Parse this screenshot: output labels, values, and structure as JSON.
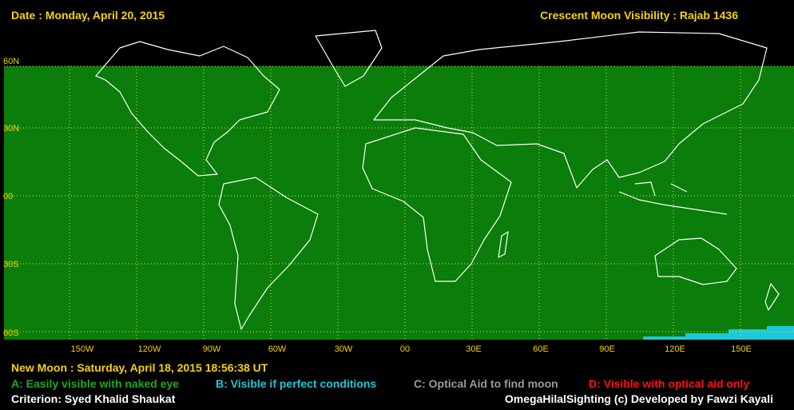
{
  "header": {
    "date": "Date : Monday, April 20, 2015",
    "title": "Crescent Moon Visibility : Rajab  1436"
  },
  "lat_labels": [
    "60N",
    "30N",
    "00",
    "30S",
    "60S"
  ],
  "lon_labels": [
    "150W",
    "120W",
    "90W",
    "60W",
    "30W",
    "00",
    "30E",
    "60E",
    "90E",
    "120E",
    "150E"
  ],
  "footer": {
    "new_moon": "New Moon : Saturday, April 18, 2015  18:56:38  UT",
    "legend": [
      "A: Easily visible with naked eye",
      "B: Visible if perfect conditions",
      "C: Optical Aid to find moon",
      "D: Visible with optical aid only"
    ],
    "criterion": "Criterion: Syed Khalid Shaukat",
    "credit": "OmegaHilalSighting  (c)  Developed by Fawzi Kayali"
  }
}
